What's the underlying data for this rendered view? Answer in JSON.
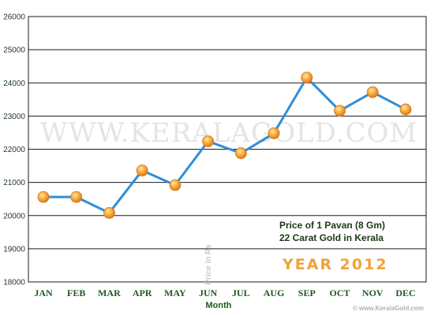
{
  "chart_data": {
    "type": "line",
    "categories": [
      "JAN",
      "FEB",
      "MAR",
      "APR",
      "MAY",
      "JUN",
      "JUL",
      "AUG",
      "SEP",
      "OCT",
      "NOV",
      "DEC"
    ],
    "values": [
      20560,
      20560,
      20080,
      21360,
      20920,
      22240,
      21880,
      22480,
      24160,
      23160,
      23720,
      23200
    ],
    "ylim": [
      18000,
      26000
    ],
    "yticks": [
      18000,
      19000,
      20000,
      21000,
      22000,
      23000,
      24000,
      25000,
      26000
    ],
    "xlabel": "Month",
    "ylabel": "Price in Rs",
    "grid": true,
    "colors": {
      "line": "#2e8ed8",
      "marker": "#f49a26",
      "grid": "#1a1a1a"
    }
  },
  "watermark": "WWW.KERALAGOLD.COM",
  "notes": {
    "line1": "Price of 1 Pavan (8 Gm)",
    "line2": "22 Carat Gold in Kerala",
    "year": "YEAR 2012"
  },
  "credit": "© www.KeralaGold.com"
}
